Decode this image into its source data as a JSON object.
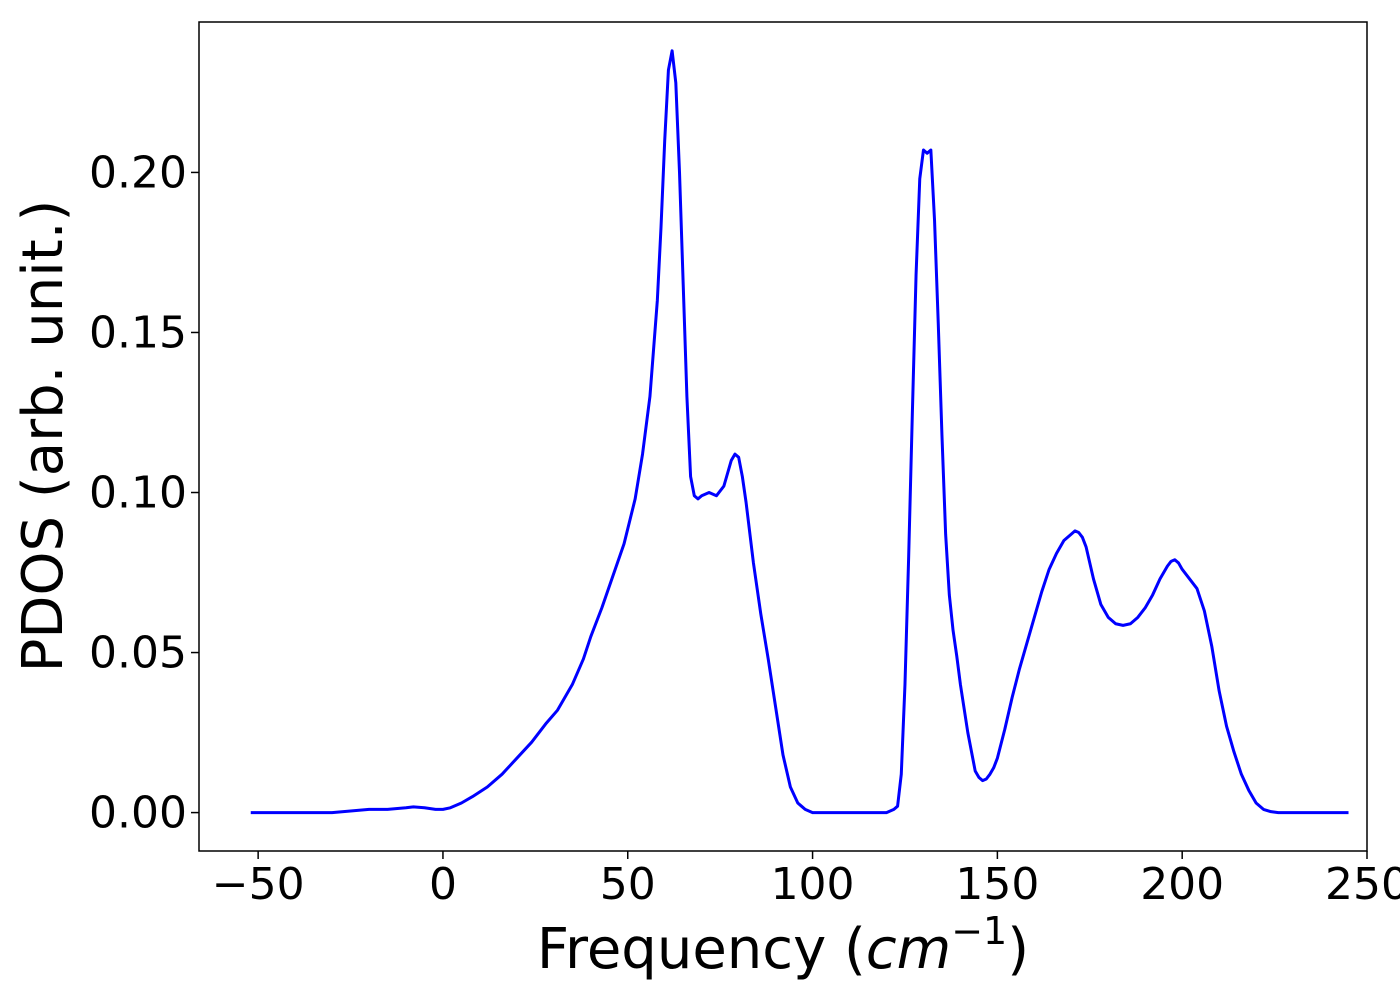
{
  "chart_data": {
    "type": "line",
    "title": "",
    "xlabel": "Frequency (cm⁻¹)",
    "xlabel_text": "Frequency (",
    "xlabel_unit": "cm",
    "xlabel_exp": "−1",
    "xlabel_close": ")",
    "ylabel": "PDOS (arb. unit.)",
    "xlim": [
      -66,
      250
    ],
    "ylim": [
      -0.012,
      0.247
    ],
    "xticks": [
      -50,
      0,
      50,
      100,
      150,
      200,
      250
    ],
    "xtick_labels": [
      "−50",
      "0",
      "50",
      "100",
      "150",
      "200",
      "250"
    ],
    "yticks": [
      0.0,
      0.05,
      0.1,
      0.15,
      0.2
    ],
    "ytick_labels": [
      "0.00",
      "0.05",
      "0.10",
      "0.15",
      "0.20"
    ],
    "grid": false,
    "legend": "none",
    "series": [
      {
        "color": "#0000ff",
        "x": [
          -52,
          -30,
          -25,
          -20,
          -15,
          -10,
          -8,
          -5,
          -2,
          0,
          2,
          5,
          8,
          12,
          16,
          20,
          24,
          28,
          31,
          35,
          38,
          40,
          43,
          46,
          49,
          52,
          54,
          56,
          58,
          59,
          60,
          61,
          62,
          63,
          64,
          65,
          66,
          67,
          68,
          69,
          70,
          72,
          74,
          76,
          78,
          79,
          80,
          81,
          82,
          84,
          86,
          88,
          90,
          92,
          94,
          96,
          97,
          98,
          99,
          100,
          102,
          105,
          110,
          115,
          120,
          121,
          122,
          123,
          124,
          125,
          126,
          127,
          128,
          129,
          130,
          131,
          132,
          133,
          134,
          135,
          136,
          137,
          138,
          139,
          140,
          142,
          144,
          145,
          146,
          147,
          148,
          149,
          150,
          152,
          154,
          156,
          158,
          160,
          162,
          164,
          166,
          168,
          170,
          171,
          172,
          173,
          174,
          176,
          178,
          180,
          182,
          184,
          186,
          188,
          190,
          192,
          194,
          196,
          197,
          198,
          199,
          200,
          202,
          204,
          206,
          208,
          210,
          212,
          214,
          216,
          218,
          220,
          222,
          224,
          226,
          230,
          240,
          245
        ],
        "y": [
          0.0,
          0.0,
          0.0005,
          0.001,
          0.001,
          0.0015,
          0.0018,
          0.0015,
          0.001,
          0.001,
          0.0015,
          0.003,
          0.005,
          0.008,
          0.012,
          0.017,
          0.022,
          0.028,
          0.032,
          0.04,
          0.048,
          0.055,
          0.064,
          0.074,
          0.084,
          0.098,
          0.112,
          0.13,
          0.16,
          0.183,
          0.21,
          0.232,
          0.238,
          0.228,
          0.2,
          0.165,
          0.13,
          0.105,
          0.099,
          0.098,
          0.099,
          0.1,
          0.099,
          0.102,
          0.11,
          0.112,
          0.111,
          0.105,
          0.097,
          0.078,
          0.062,
          0.048,
          0.033,
          0.018,
          0.008,
          0.003,
          0.002,
          0.001,
          0.0005,
          0.0,
          0.0,
          0.0,
          0.0,
          0.0,
          0.0,
          0.0005,
          0.001,
          0.002,
          0.012,
          0.04,
          0.08,
          0.125,
          0.168,
          0.198,
          0.207,
          0.206,
          0.207,
          0.185,
          0.153,
          0.118,
          0.087,
          0.068,
          0.057,
          0.049,
          0.04,
          0.025,
          0.013,
          0.011,
          0.01,
          0.0105,
          0.012,
          0.014,
          0.017,
          0.026,
          0.036,
          0.045,
          0.053,
          0.061,
          0.069,
          0.076,
          0.081,
          0.085,
          0.087,
          0.088,
          0.0875,
          0.086,
          0.083,
          0.073,
          0.065,
          0.061,
          0.059,
          0.0585,
          0.059,
          0.061,
          0.064,
          0.068,
          0.073,
          0.077,
          0.0785,
          0.079,
          0.078,
          0.076,
          0.073,
          0.07,
          0.063,
          0.052,
          0.038,
          0.027,
          0.019,
          0.012,
          0.007,
          0.003,
          0.001,
          0.0003,
          0.0,
          0.0,
          0.0,
          0.0
        ]
      }
    ]
  }
}
